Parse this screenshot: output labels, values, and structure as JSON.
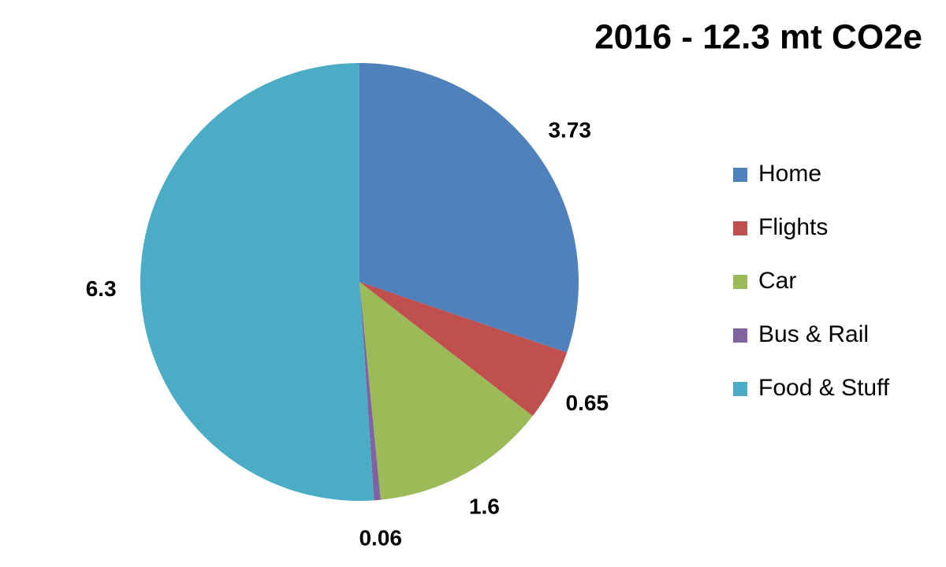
{
  "chart_data": {
    "type": "pie",
    "title": "2016 - 12.3 mt CO2e",
    "categories": [
      "Home",
      "Flights",
      "Car",
      "Bus & Rail",
      "Food & Stuff"
    ],
    "values": [
      3.73,
      0.65,
      1.6,
      0.06,
      6.3
    ],
    "colors": [
      "#4f81bd",
      "#c0504d",
      "#9bbb59",
      "#8064a2",
      "#4bacc6"
    ],
    "legend": "right"
  }
}
